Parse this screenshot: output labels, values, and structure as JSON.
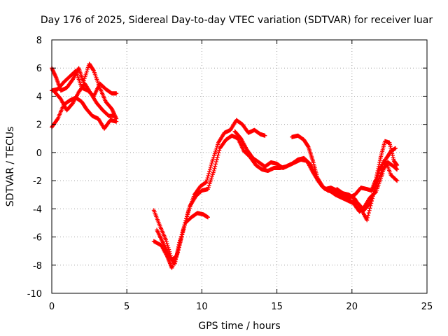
{
  "chart_data": {
    "type": "scatter",
    "title": "Day 176 of 2025, Sidereal Day-to-day VTEC variation (SDTVAR) for receiver luar",
    "xlabel": "GPS time / hours",
    "ylabel": "SDTVAR / TECUs",
    "xlim": [
      0,
      25
    ],
    "ylim": [
      -10,
      8
    ],
    "x_ticks": [
      "0",
      "5",
      "10",
      "15",
      "20",
      "25"
    ],
    "y_ticks": [
      "-10",
      "-8",
      "-6",
      "-4",
      "-2",
      "0",
      "2",
      "4",
      "6",
      "8"
    ],
    "grid": true,
    "marker": "+",
    "series_color": "#ff0000",
    "segments": [
      {
        "name": "early-1",
        "points": [
          [
            0.0,
            6.0
          ],
          [
            0.3,
            5.3
          ],
          [
            0.6,
            4.4
          ],
          [
            1.0,
            4.6
          ],
          [
            1.4,
            5.2
          ],
          [
            1.8,
            6.0
          ],
          [
            2.1,
            5.0
          ],
          [
            2.5,
            6.3
          ],
          [
            2.8,
            5.8
          ],
          [
            3.2,
            4.6
          ],
          [
            3.6,
            3.6
          ],
          [
            4.0,
            3.1
          ],
          [
            4.3,
            2.4
          ]
        ]
      },
      {
        "name": "early-2",
        "points": [
          [
            0.0,
            4.4
          ],
          [
            0.4,
            4.5
          ],
          [
            0.8,
            5.0
          ],
          [
            1.2,
            5.4
          ],
          [
            1.6,
            5.8
          ],
          [
            2.0,
            4.6
          ],
          [
            2.4,
            4.4
          ],
          [
            2.8,
            4.0
          ],
          [
            3.2,
            4.9
          ],
          [
            3.6,
            4.5
          ],
          [
            4.0,
            4.2
          ],
          [
            4.3,
            4.2
          ]
        ]
      },
      {
        "name": "early-3",
        "points": [
          [
            0.0,
            1.8
          ],
          [
            0.4,
            2.4
          ],
          [
            0.8,
            3.4
          ],
          [
            1.2,
            3.7
          ],
          [
            1.6,
            3.9
          ],
          [
            2.0,
            3.6
          ],
          [
            2.3,
            3.1
          ],
          [
            2.7,
            2.6
          ],
          [
            3.1,
            2.4
          ],
          [
            3.5,
            1.7
          ],
          [
            3.9,
            2.3
          ],
          [
            4.3,
            2.2
          ]
        ]
      },
      {
        "name": "early-4",
        "points": [
          [
            0.2,
            4.3
          ],
          [
            0.6,
            3.8
          ],
          [
            1.0,
            3.0
          ],
          [
            1.4,
            3.5
          ],
          [
            1.8,
            4.3
          ],
          [
            2.2,
            4.9
          ],
          [
            2.6,
            4.2
          ],
          [
            3.0,
            3.5
          ],
          [
            3.4,
            3.0
          ],
          [
            3.8,
            2.6
          ],
          [
            4.2,
            2.6
          ]
        ]
      },
      {
        "name": "main-1",
        "points": [
          [
            6.8,
            -4.1
          ],
          [
            7.2,
            -5.2
          ],
          [
            7.6,
            -6.2
          ],
          [
            8.0,
            -7.6
          ],
          [
            8.3,
            -7.4
          ],
          [
            8.7,
            -5.8
          ],
          [
            9.1,
            -4.2
          ],
          [
            9.5,
            -3.0
          ],
          [
            9.9,
            -2.4
          ],
          [
            10.3,
            -2.1
          ],
          [
            10.7,
            -0.6
          ],
          [
            11.1,
            0.7
          ],
          [
            11.5,
            1.4
          ],
          [
            11.9,
            1.6
          ],
          [
            12.3,
            2.3
          ],
          [
            12.7,
            2.0
          ],
          [
            13.1,
            1.4
          ],
          [
            13.5,
            1.6
          ],
          [
            13.9,
            1.3
          ],
          [
            14.2,
            1.2
          ]
        ]
      },
      {
        "name": "main-2",
        "points": [
          [
            6.8,
            -6.3
          ],
          [
            7.3,
            -6.6
          ],
          [
            7.7,
            -7.4
          ],
          [
            8.0,
            -8.2
          ],
          [
            8.4,
            -7.1
          ],
          [
            8.8,
            -5.3
          ],
          [
            9.2,
            -3.8
          ],
          [
            9.6,
            -3.1
          ],
          [
            10.0,
            -2.7
          ],
          [
            10.4,
            -2.6
          ],
          [
            10.8,
            -1.3
          ],
          [
            11.2,
            0.3
          ],
          [
            11.6,
            0.9
          ],
          [
            12.0,
            1.2
          ],
          [
            12.4,
            1.0
          ],
          [
            12.8,
            0.1
          ],
          [
            13.2,
            -0.3
          ],
          [
            13.6,
            -0.9
          ],
          [
            14.0,
            -1.2
          ],
          [
            14.4,
            -1.3
          ],
          [
            14.8,
            -1.1
          ],
          [
            15.2,
            -1.1
          ],
          [
            15.6,
            -1.0
          ],
          [
            16.0,
            -0.8
          ],
          [
            16.4,
            -0.5
          ],
          [
            16.8,
            -0.4
          ],
          [
            17.2,
            -0.8
          ],
          [
            17.6,
            -1.7
          ],
          [
            18.0,
            -2.4
          ],
          [
            18.4,
            -2.7
          ],
          [
            18.8,
            -2.8
          ],
          [
            19.2,
            -3.0
          ],
          [
            19.6,
            -3.2
          ],
          [
            20.0,
            -3.5
          ],
          [
            20.4,
            -3.6
          ],
          [
            20.8,
            -4.1
          ],
          [
            21.2,
            -3.6
          ],
          [
            21.6,
            -2.4
          ],
          [
            22.0,
            -1.3
          ],
          [
            22.4,
            -0.7
          ],
          [
            22.8,
            -1.0
          ],
          [
            23.0,
            -1.2
          ]
        ]
      },
      {
        "name": "main-3",
        "points": [
          [
            7.0,
            -5.5
          ],
          [
            7.4,
            -6.4
          ],
          [
            7.8,
            -7.3
          ],
          [
            8.2,
            -7.9
          ],
          [
            8.5,
            -6.4
          ],
          [
            8.9,
            -5.0
          ],
          [
            9.3,
            -4.6
          ],
          [
            9.7,
            -4.3
          ],
          [
            10.1,
            -4.4
          ],
          [
            10.4,
            -4.6
          ]
        ]
      },
      {
        "name": "main-4",
        "points": [
          [
            12.2,
            1.5
          ],
          [
            12.6,
            1.0
          ],
          [
            13.0,
            0.2
          ],
          [
            13.4,
            -0.4
          ],
          [
            13.8,
            -0.7
          ],
          [
            14.2,
            -1.0
          ],
          [
            14.6,
            -0.7
          ],
          [
            15.0,
            -0.8
          ],
          [
            15.4,
            -1.1
          ],
          [
            15.8,
            -0.9
          ],
          [
            16.2,
            -0.7
          ],
          [
            16.6,
            -0.5
          ],
          [
            17.0,
            -0.6
          ],
          [
            17.4,
            -1.4
          ],
          [
            17.8,
            -2.1
          ],
          [
            18.2,
            -2.6
          ],
          [
            18.6,
            -2.5
          ],
          [
            19.0,
            -2.7
          ],
          [
            19.4,
            -2.9
          ],
          [
            19.8,
            -3.0
          ],
          [
            20.2,
            -3.3
          ],
          [
            20.6,
            -4.0
          ],
          [
            21.0,
            -4.8
          ],
          [
            21.4,
            -3.1
          ],
          [
            21.8,
            -1.3
          ],
          [
            22.2,
            -0.5
          ],
          [
            22.6,
            -1.6
          ],
          [
            23.0,
            -2.0
          ]
        ]
      },
      {
        "name": "main-5",
        "points": [
          [
            16.0,
            1.1
          ],
          [
            16.4,
            1.2
          ],
          [
            16.8,
            0.9
          ],
          [
            17.1,
            0.4
          ],
          [
            17.4,
            -0.6
          ],
          [
            17.7,
            -1.8
          ],
          [
            18.1,
            -2.5
          ],
          [
            18.5,
            -2.7
          ],
          [
            18.9,
            -3.0
          ],
          [
            19.3,
            -3.2
          ],
          [
            19.7,
            -3.4
          ],
          [
            20.1,
            -3.6
          ],
          [
            20.5,
            -4.2
          ],
          [
            20.8,
            -3.9
          ],
          [
            21.2,
            -3.2
          ],
          [
            21.6,
            -2.8
          ],
          [
            22.0,
            -1.6
          ],
          [
            22.3,
            -0.4
          ],
          [
            22.6,
            0.1
          ],
          [
            22.9,
            0.3
          ]
        ]
      },
      {
        "name": "main-6",
        "points": [
          [
            19.0,
            -2.6
          ],
          [
            19.4,
            -2.9
          ],
          [
            19.8,
            -3.2
          ],
          [
            20.2,
            -3.0
          ],
          [
            20.6,
            -2.5
          ],
          [
            21.0,
            -2.6
          ],
          [
            21.3,
            -2.7
          ],
          [
            21.6,
            -1.9
          ],
          [
            21.9,
            -0.4
          ],
          [
            22.2,
            0.8
          ],
          [
            22.5,
            0.7
          ],
          [
            22.8,
            -0.6
          ],
          [
            23.0,
            -0.9
          ]
        ]
      }
    ]
  }
}
